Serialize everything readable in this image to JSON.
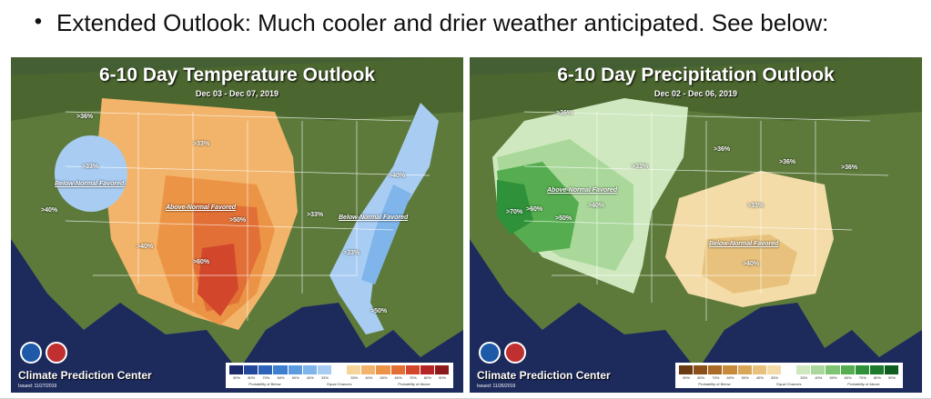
{
  "header": {
    "bullet": "•",
    "text": "Extended Outlook: Much cooler and drier weather anticipated. See below:"
  },
  "temperature_map": {
    "title": "6-10 Day Temperature Outlook",
    "dates": "Dec 03 - Dec 07, 2019",
    "agency": "Climate Prediction Center",
    "issued": "Issued: 11/27/2019",
    "labels": {
      "nw": ">36%",
      "great_basin": ">33%",
      "below_west": "Below-Normal Favored",
      "ca": ">40%",
      "plains_33": ">33%",
      "above": "Above-Normal Favored",
      "p50": ">50%",
      "sw40": ">40%",
      "p60": ">60%",
      "mid33": ">33%",
      "below_east": "Below-Normal Favored",
      "ne40": ">40%",
      "east33": ">33%",
      "fl50": ">50%"
    },
    "legend": {
      "ticks": [
        "90%",
        "80%",
        "70%",
        "60%",
        "50%",
        "40%",
        "33%",
        "",
        "33%",
        "40%",
        "50%",
        "60%",
        "70%",
        "80%",
        "90%"
      ],
      "left": "Probability of Below",
      "center": "Equal Chances",
      "right": "Probability of Above",
      "colors": [
        "#1b2a6b",
        "#24469b",
        "#2c62b8",
        "#3f7fd0",
        "#5c9be0",
        "#7fb5ea",
        "#a9cdf2",
        "#ffffff",
        "#f6d59a",
        "#f2b46a",
        "#ec9446",
        "#e27036",
        "#d2472b",
        "#b52525",
        "#8c1a1a"
      ]
    }
  },
  "precipitation_map": {
    "title": "6-10 Day Precipitation Outlook",
    "dates": "Dec 02 - Dec 06, 2019",
    "agency": "Climate Prediction Center",
    "issued": "Issued: 11/26/2019",
    "labels": {
      "nw": ">36%",
      "plains33": ">33%",
      "mw36": ">36%",
      "lakes36": ">36%",
      "ne36": ">36%",
      "above": "Above-Normal Favored",
      "p70": ">70%",
      "p60": ">60%",
      "p50": ">50%",
      "p40": ">40%",
      "se33": ">33%",
      "below": "Below-Normal Favored",
      "s40": ">40%"
    },
    "legend": {
      "ticks": [
        "90%",
        "80%",
        "70%",
        "60%",
        "50%",
        "40%",
        "33%",
        "",
        "33%",
        "40%",
        "50%",
        "60%",
        "70%",
        "80%",
        "90%"
      ],
      "left": "Probability of Below",
      "center": "Equal Chances",
      "right": "Probability of Above",
      "colors": [
        "#6b3a12",
        "#8a4f1a",
        "#a86a26",
        "#c58a3a",
        "#d9a657",
        "#e8c27c",
        "#f3dca8",
        "#ffffff",
        "#cfe8c0",
        "#a9d89a",
        "#7fc472",
        "#55ad4f",
        "#2f9139",
        "#1c7a2c",
        "#0f5e20"
      ]
    }
  }
}
